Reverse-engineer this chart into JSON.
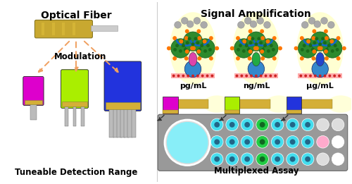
{
  "left_title": "Optical Fiber",
  "left_subtitle": "Modulation",
  "left_bottom": "Tuneable Detection Range",
  "right_title": "Signal Amplification",
  "right_labels": [
    "pg/mL",
    "ng/mL",
    "μg/mL"
  ],
  "right_bottom": "Multiplexed Assay",
  "bg_color": "#ffffff",
  "arrow_color": "#f0a060",
  "fiber_colors": [
    "#dd00cc",
    "#aaee00",
    "#2233dd"
  ],
  "fiber_tip_color": "#d4af37",
  "fiber_metal_color": "#bbbbbb",
  "top_fiber_gold": "#c8a830",
  "top_fiber_gray": "#cccccc",
  "green_ball": "#2d8a2d",
  "orange_dot": "#ff7700",
  "blue_arm": "#1166cc",
  "cyan_well": "#44ddee",
  "green_well": "#22cc44",
  "pink_well": "#ffaacc",
  "white_well": "#ffffff",
  "plate_gray": "#999999",
  "big_well_color": "#88eef8",
  "glow_color": "#ffffc0",
  "sensor_base_colors": [
    "#3388cc",
    "#3388cc",
    "#3388cc"
  ],
  "sensor_body_colors": [
    "#dd44aa",
    "#22aa44",
    "#2244cc"
  ],
  "antibody_colors": [
    "#dd88cc",
    "#22aa44",
    "#cc9900"
  ]
}
